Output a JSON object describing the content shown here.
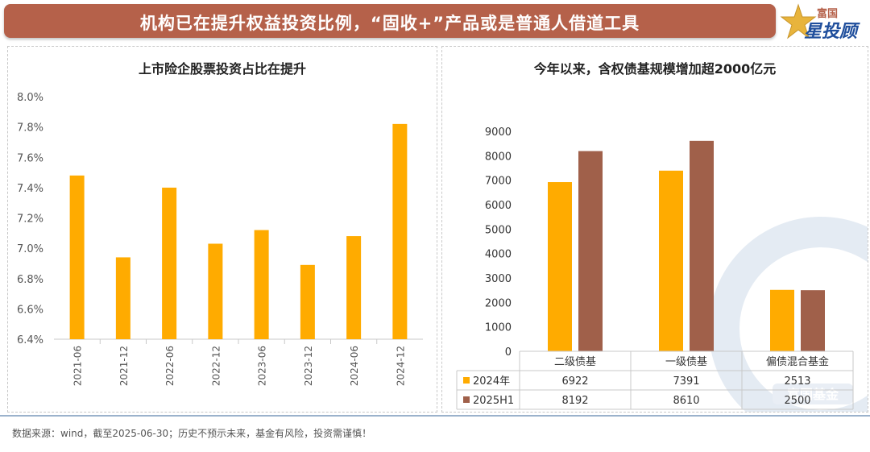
{
  "header": {
    "title": "机构已在提升权益投资比例，“固收+”产品或是普通人借道工具",
    "logo_top": "富国",
    "logo_main": "星投顾"
  },
  "colors": {
    "banner": "#b5614a",
    "orange": "#ffab00",
    "brown": "#a0604a"
  },
  "chart_data": [
    {
      "type": "bar",
      "title": "上市险企股票投资占比在提升",
      "categories": [
        "2021-06",
        "2021-12",
        "2022-06",
        "2022-12",
        "2023-06",
        "2023-12",
        "2024-06",
        "2024-12"
      ],
      "values": [
        7.48,
        6.94,
        7.4,
        7.03,
        7.12,
        6.89,
        7.08,
        7.82
      ],
      "ylim": [
        6.4,
        8.0
      ],
      "yticks": [
        "6.4%",
        "6.6%",
        "6.8%",
        "7.0%",
        "7.2%",
        "7.4%",
        "7.6%",
        "7.8%",
        "8.0%"
      ],
      "grid": false
    },
    {
      "type": "bar",
      "title": "今年以来，含权债基规模增加超2000亿元",
      "categories": [
        "二级债基",
        "一级债基",
        "偏债混合基金"
      ],
      "series": [
        {
          "name": "2024年",
          "values": [
            6922,
            7391,
            2513
          ],
          "labels": [
            "6922",
            "7391",
            "2513"
          ]
        },
        {
          "name": "2025H1",
          "values": [
            8192,
            8610,
            2500
          ],
          "labels": [
            "8192",
            "8610",
            "2500"
          ]
        }
      ],
      "ylim": [
        0,
        9000
      ],
      "yticks": [
        "0",
        "1000",
        "2000",
        "3000",
        "4000",
        "5000",
        "6000",
        "7000",
        "8000",
        "9000"
      ],
      "legend": "data-table",
      "watermark": "富国基金"
    }
  ],
  "footer": {
    "note": "数据来源：wind，截至2025-06-30；历史不预示未来，基金有风险，投资需谨慎！"
  }
}
